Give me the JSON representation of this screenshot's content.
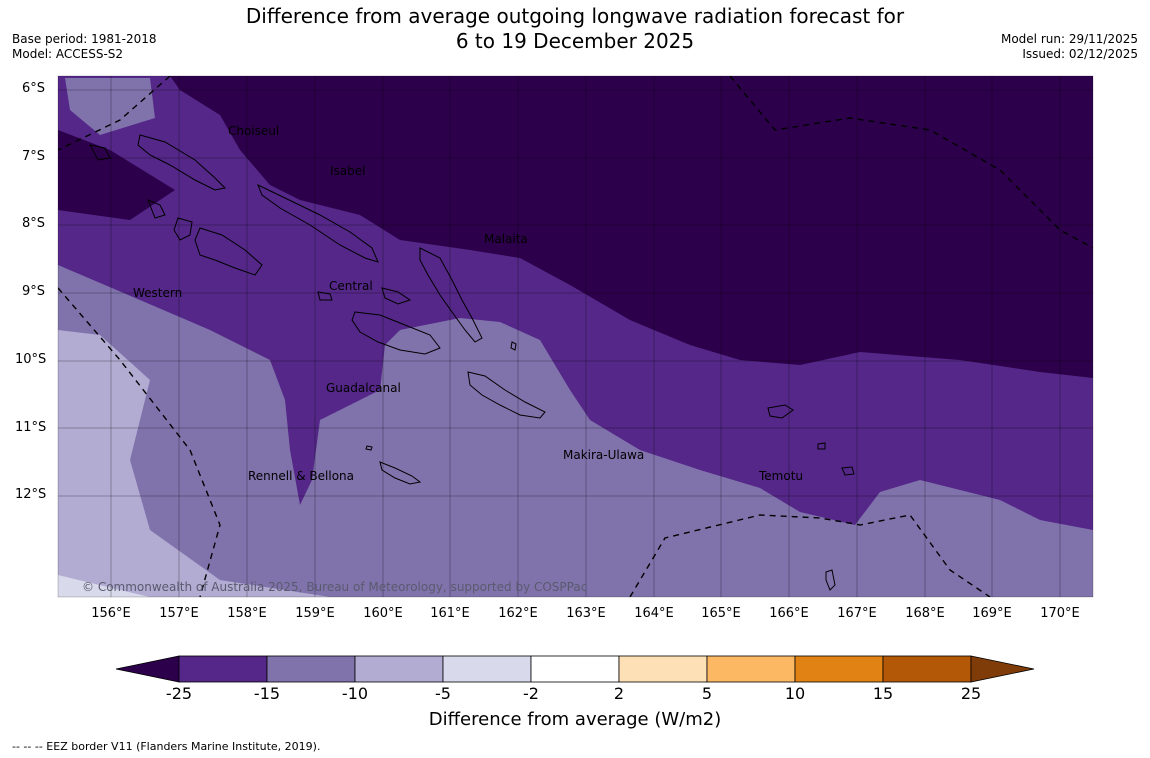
{
  "header": {
    "title_line1": "Difference from average outgoing longwave radiation forecast for",
    "title_line2": "6 to 19 December 2025",
    "base_period": "Base period: 1981-2018",
    "model": "Model: ACCESS-S2",
    "model_run": "Model run: 29/11/2025",
    "issued": "Issued: 02/12/2025"
  },
  "map": {
    "lat_labels": [
      "6°S",
      "7°S",
      "8°S",
      "9°S",
      "10°S",
      "11°S",
      "12°S"
    ],
    "lon_labels": [
      "156°E",
      "157°E",
      "158°E",
      "159°E",
      "160°E",
      "161°E",
      "162°E",
      "163°E",
      "164°E",
      "165°E",
      "166°E",
      "167°E",
      "168°E",
      "169°E",
      "170°E"
    ],
    "regions": {
      "choiseul": "Choiseul",
      "isabel": "Isabel",
      "malaita": "Malaita",
      "western": "Western",
      "central": "Central",
      "guadalcanal": "Guadalcanal",
      "makira": "Makira-Ulawa",
      "rennell": "Rennell & Bellona",
      "temotu": "Temotu"
    },
    "copyright": "© Commonwealth of Australia 2025, Bureau of Meteorology, supported by COSPPac"
  },
  "colorbar": {
    "title": "Difference from average (W/m2)",
    "labels": [
      "-25",
      "-15",
      "-10",
      "-5",
      "-2",
      "2",
      "5",
      "10",
      "15",
      "25"
    ],
    "colors": [
      "#2d004b",
      "#542788",
      "#8073ac",
      "#b2abd2",
      "#d8daeb",
      "#ffffff",
      "#fee0b6",
      "#fdb863",
      "#e08214",
      "#b35806",
      "#7f3b08"
    ]
  },
  "footnote": "--  --  -- EEZ border V11 (Flanders Marine Institute, 2019)."
}
